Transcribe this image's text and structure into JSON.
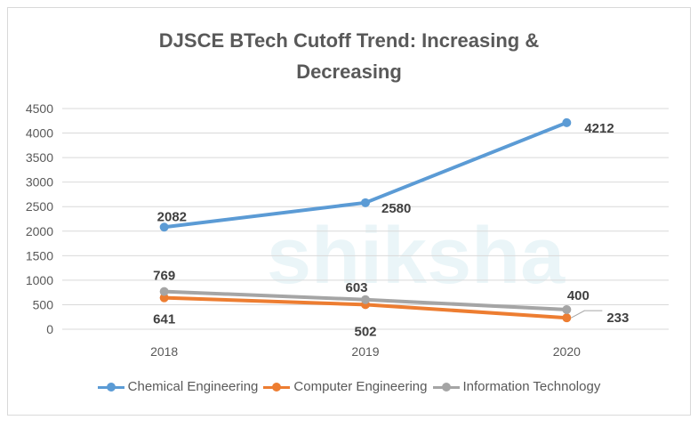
{
  "chart_data": {
    "type": "line",
    "title": "DJSCE BTech Cutoff Trend: Increasing & Decreasing",
    "title_lines": [
      "DJSCE BTech Cutoff Trend: Increasing &",
      "Decreasing"
    ],
    "categories": [
      "2018",
      "2019",
      "2020"
    ],
    "ylim": [
      0,
      4500
    ],
    "yticks": [
      0,
      500,
      1000,
      1500,
      2000,
      2500,
      3000,
      3500,
      4000,
      4500
    ],
    "grid": true,
    "legend_position": "bottom",
    "watermark": "shiksha",
    "series": [
      {
        "name": "Chemical Engineering",
        "values": [
          2082,
          2580,
          4212
        ],
        "color": "#5B9BD5"
      },
      {
        "name": "Computer Engineering",
        "values": [
          641,
          502,
          233
        ],
        "color": "#ED7D31"
      },
      {
        "name": "Information Technology",
        "values": [
          769,
          603,
          400
        ],
        "color": "#A5A5A5"
      }
    ]
  }
}
